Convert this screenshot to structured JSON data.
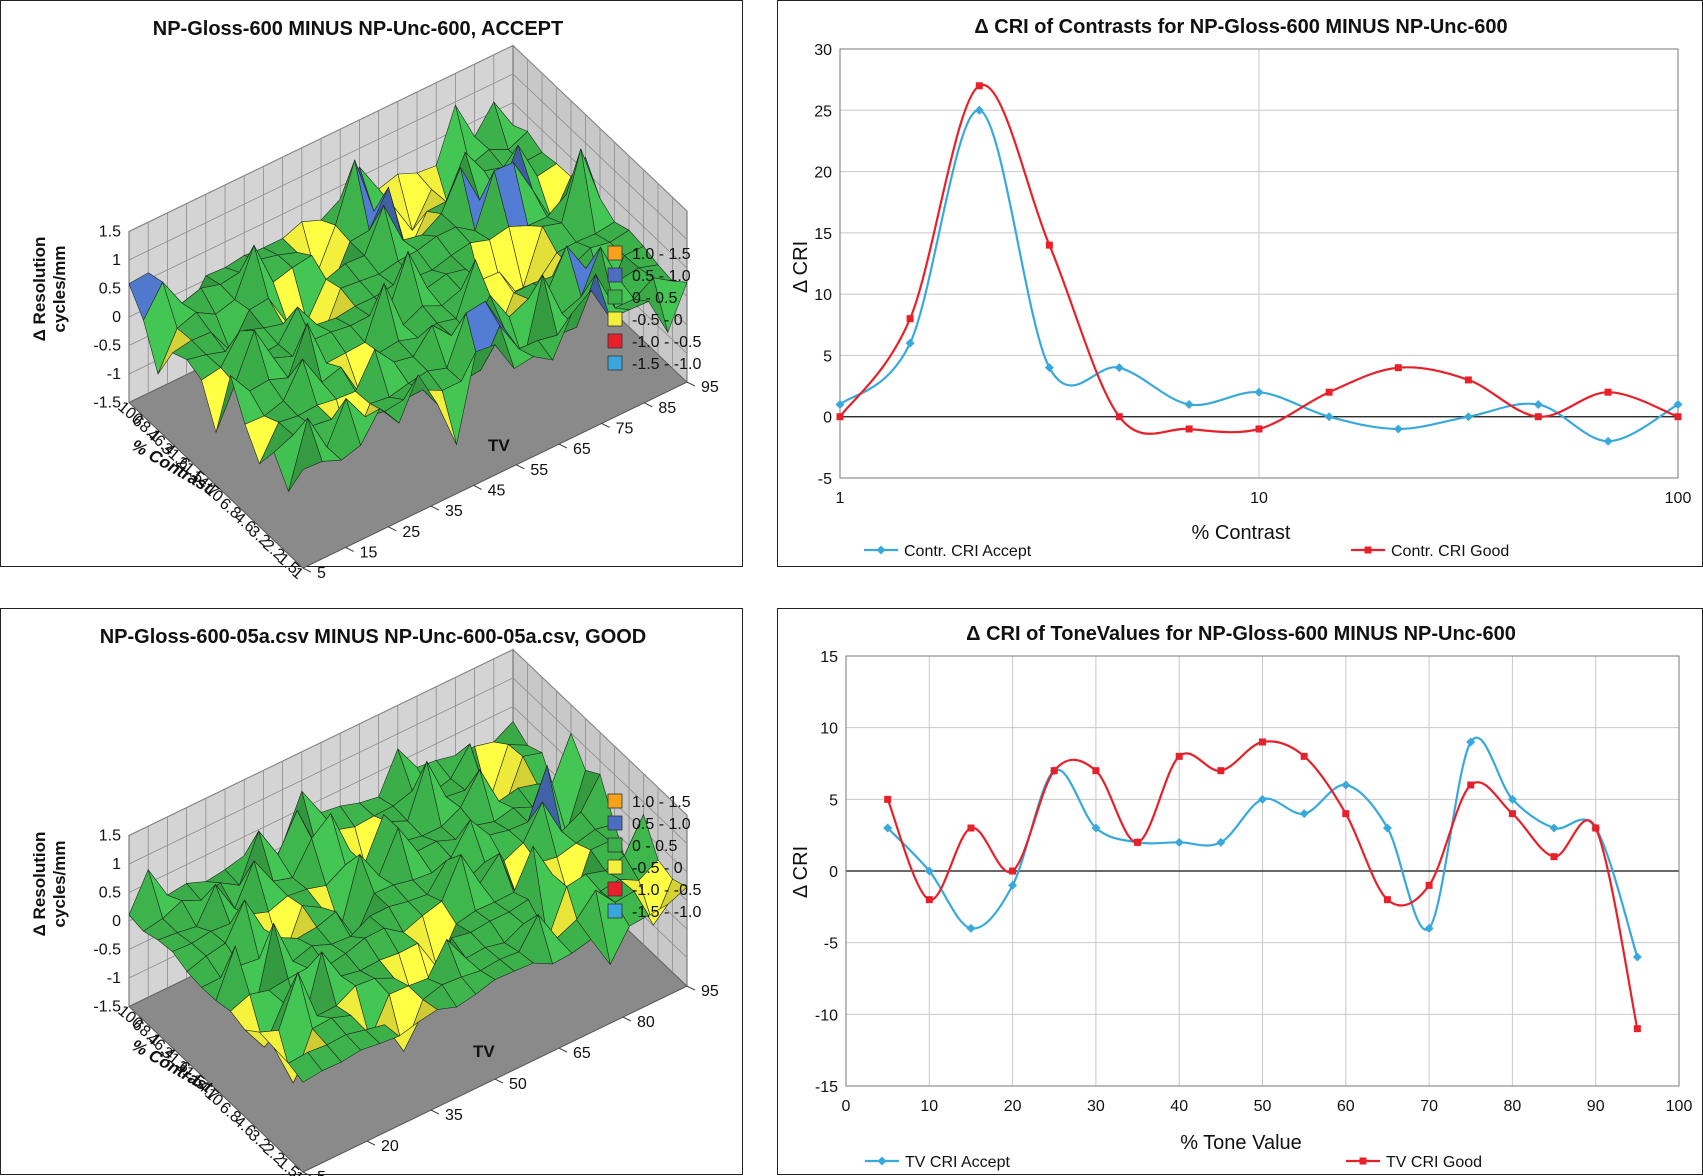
{
  "surface_panels": [
    {
      "title": "NP-Gloss-600 MINUS NP-Unc-600,  ACCEPT",
      "z_axis_label_1": "Δ Resolution",
      "z_axis_label_2": "cycles/mm",
      "z_ticks": [
        "1.5",
        "1",
        "0.5",
        "0",
        "-0.5",
        "-1",
        "-1.5"
      ],
      "contrast_label": "% Contrast",
      "contrast_ticks": [
        "100",
        "68.1",
        "46.4",
        "31.6",
        "21.5",
        "14.7",
        "10",
        "6.8",
        "4.6",
        "3.2",
        "2.2",
        "1.5",
        "1"
      ],
      "tv_label": "TV",
      "tv_ticks": [
        "5",
        "15",
        "25",
        "35",
        "45",
        "55",
        "65",
        "75",
        "85",
        "95"
      ],
      "legend": [
        {
          "label": "1.0 -  1.5",
          "color": "#f7a21b"
        },
        {
          "label": "0.5 -  1.0",
          "color": "#4a6fbe"
        },
        {
          "label": "0 -  0.5",
          "color": "#3cb14a"
        },
        {
          "label": "-0.5 -  0",
          "color": "#f2ef3d"
        },
        {
          "label": "-1.0 - -0.5",
          "color": "#e8202a"
        },
        {
          "label": "-1.5 - -1.0",
          "color": "#3aa6dd"
        }
      ]
    },
    {
      "title": "NP-Gloss-600-05a.csv MINUS NP-Unc-600-05a.csv,  GOOD",
      "z_axis_label_1": "Δ Resolution",
      "z_axis_label_2": "cycles/mm",
      "z_ticks": [
        "1.5",
        "1",
        "0.5",
        "0",
        "-0.5",
        "-1",
        "-1.5"
      ],
      "contrast_label": "% Contrast",
      "contrast_ticks": [
        "100",
        "68.1",
        "46.4",
        "31.6",
        "21.5",
        "14.7",
        "10",
        "6.8",
        "4.6",
        "3.2",
        "2.2",
        "1.5",
        "1"
      ],
      "tv_label": "TV",
      "tv_ticks": [
        "5",
        "20",
        "35",
        "50",
        "65",
        "80",
        "95"
      ],
      "legend": [
        {
          "label": "1.0 -  1.5",
          "color": "#f7a21b"
        },
        {
          "label": "0.5 -  1.0",
          "color": "#4a6fbe"
        },
        {
          "label": "0 -  0.5",
          "color": "#3cb14a"
        },
        {
          "label": "-0.5 -  0",
          "color": "#f2ef3d"
        },
        {
          "label": "-1.0 - -0.5",
          "color": "#e8202a"
        },
        {
          "label": "-1.5 - -1.0",
          "color": "#3aa6dd"
        }
      ]
    }
  ],
  "chart_data": [
    {
      "type": "line",
      "title": "Δ CRI of Contrasts for  NP-Gloss-600 MINUS NP-Unc-600",
      "xlabel": "% Contrast",
      "ylabel": "Δ CRI",
      "x_scale": "log",
      "xlim": [
        1,
        100
      ],
      "ylim": [
        -5,
        30
      ],
      "x_ticks": [
        "1",
        "10",
        "100"
      ],
      "y_ticks": [
        "30",
        "25",
        "20",
        "15",
        "10",
        "5",
        "0",
        "-5"
      ],
      "grid": true,
      "legend_position": "bottom",
      "x": [
        1,
        1.47,
        2.15,
        3.16,
        4.64,
        6.81,
        10,
        14.7,
        21.5,
        31.6,
        46.4,
        68.1,
        100
      ],
      "series": [
        {
          "name": "Contr. CRI Accept",
          "color": "#39a9dc",
          "marker": "diamond",
          "values": [
            1,
            6,
            25,
            4,
            4,
            1,
            2,
            0,
            -1,
            0,
            1,
            -2,
            1
          ]
        },
        {
          "name": "Contr. CRI Good",
          "color": "#e8202a",
          "marker": "square",
          "values": [
            0,
            8,
            27,
            14,
            0,
            -1,
            -1,
            2,
            4,
            3,
            0,
            2,
            0
          ]
        }
      ]
    },
    {
      "type": "line",
      "title": "Δ CRI of ToneValues for  NP-Gloss-600 MINUS NP-Unc-600",
      "xlabel": "% Tone Value",
      "ylabel": "Δ CRI",
      "xlim": [
        0,
        100
      ],
      "ylim": [
        -15,
        15
      ],
      "x_ticks": [
        "0",
        "10",
        "20",
        "30",
        "40",
        "50",
        "60",
        "70",
        "80",
        "90",
        "100"
      ],
      "y_ticks": [
        "15",
        "10",
        "5",
        "0",
        "-5",
        "-10",
        "-15"
      ],
      "grid": true,
      "legend_position": "bottom",
      "x": [
        5,
        10,
        15,
        20,
        25,
        30,
        35,
        40,
        45,
        50,
        55,
        60,
        65,
        70,
        75,
        80,
        85,
        90,
        95
      ],
      "series": [
        {
          "name": "TV CRI Accept",
          "color": "#39a9dc",
          "marker": "diamond",
          "values": [
            3,
            0,
            -4,
            -1,
            7,
            3,
            2,
            2,
            2,
            5,
            4,
            6,
            3,
            -4,
            9,
            5,
            3,
            3,
            -6
          ]
        },
        {
          "name": "TV CRI Good",
          "color": "#e8202a",
          "marker": "square",
          "values": [
            5,
            -2,
            3,
            0,
            7,
            7,
            2,
            8,
            7,
            9,
            8,
            4,
            -2,
            -1,
            6,
            4,
            1,
            3,
            -11
          ]
        }
      ]
    }
  ]
}
